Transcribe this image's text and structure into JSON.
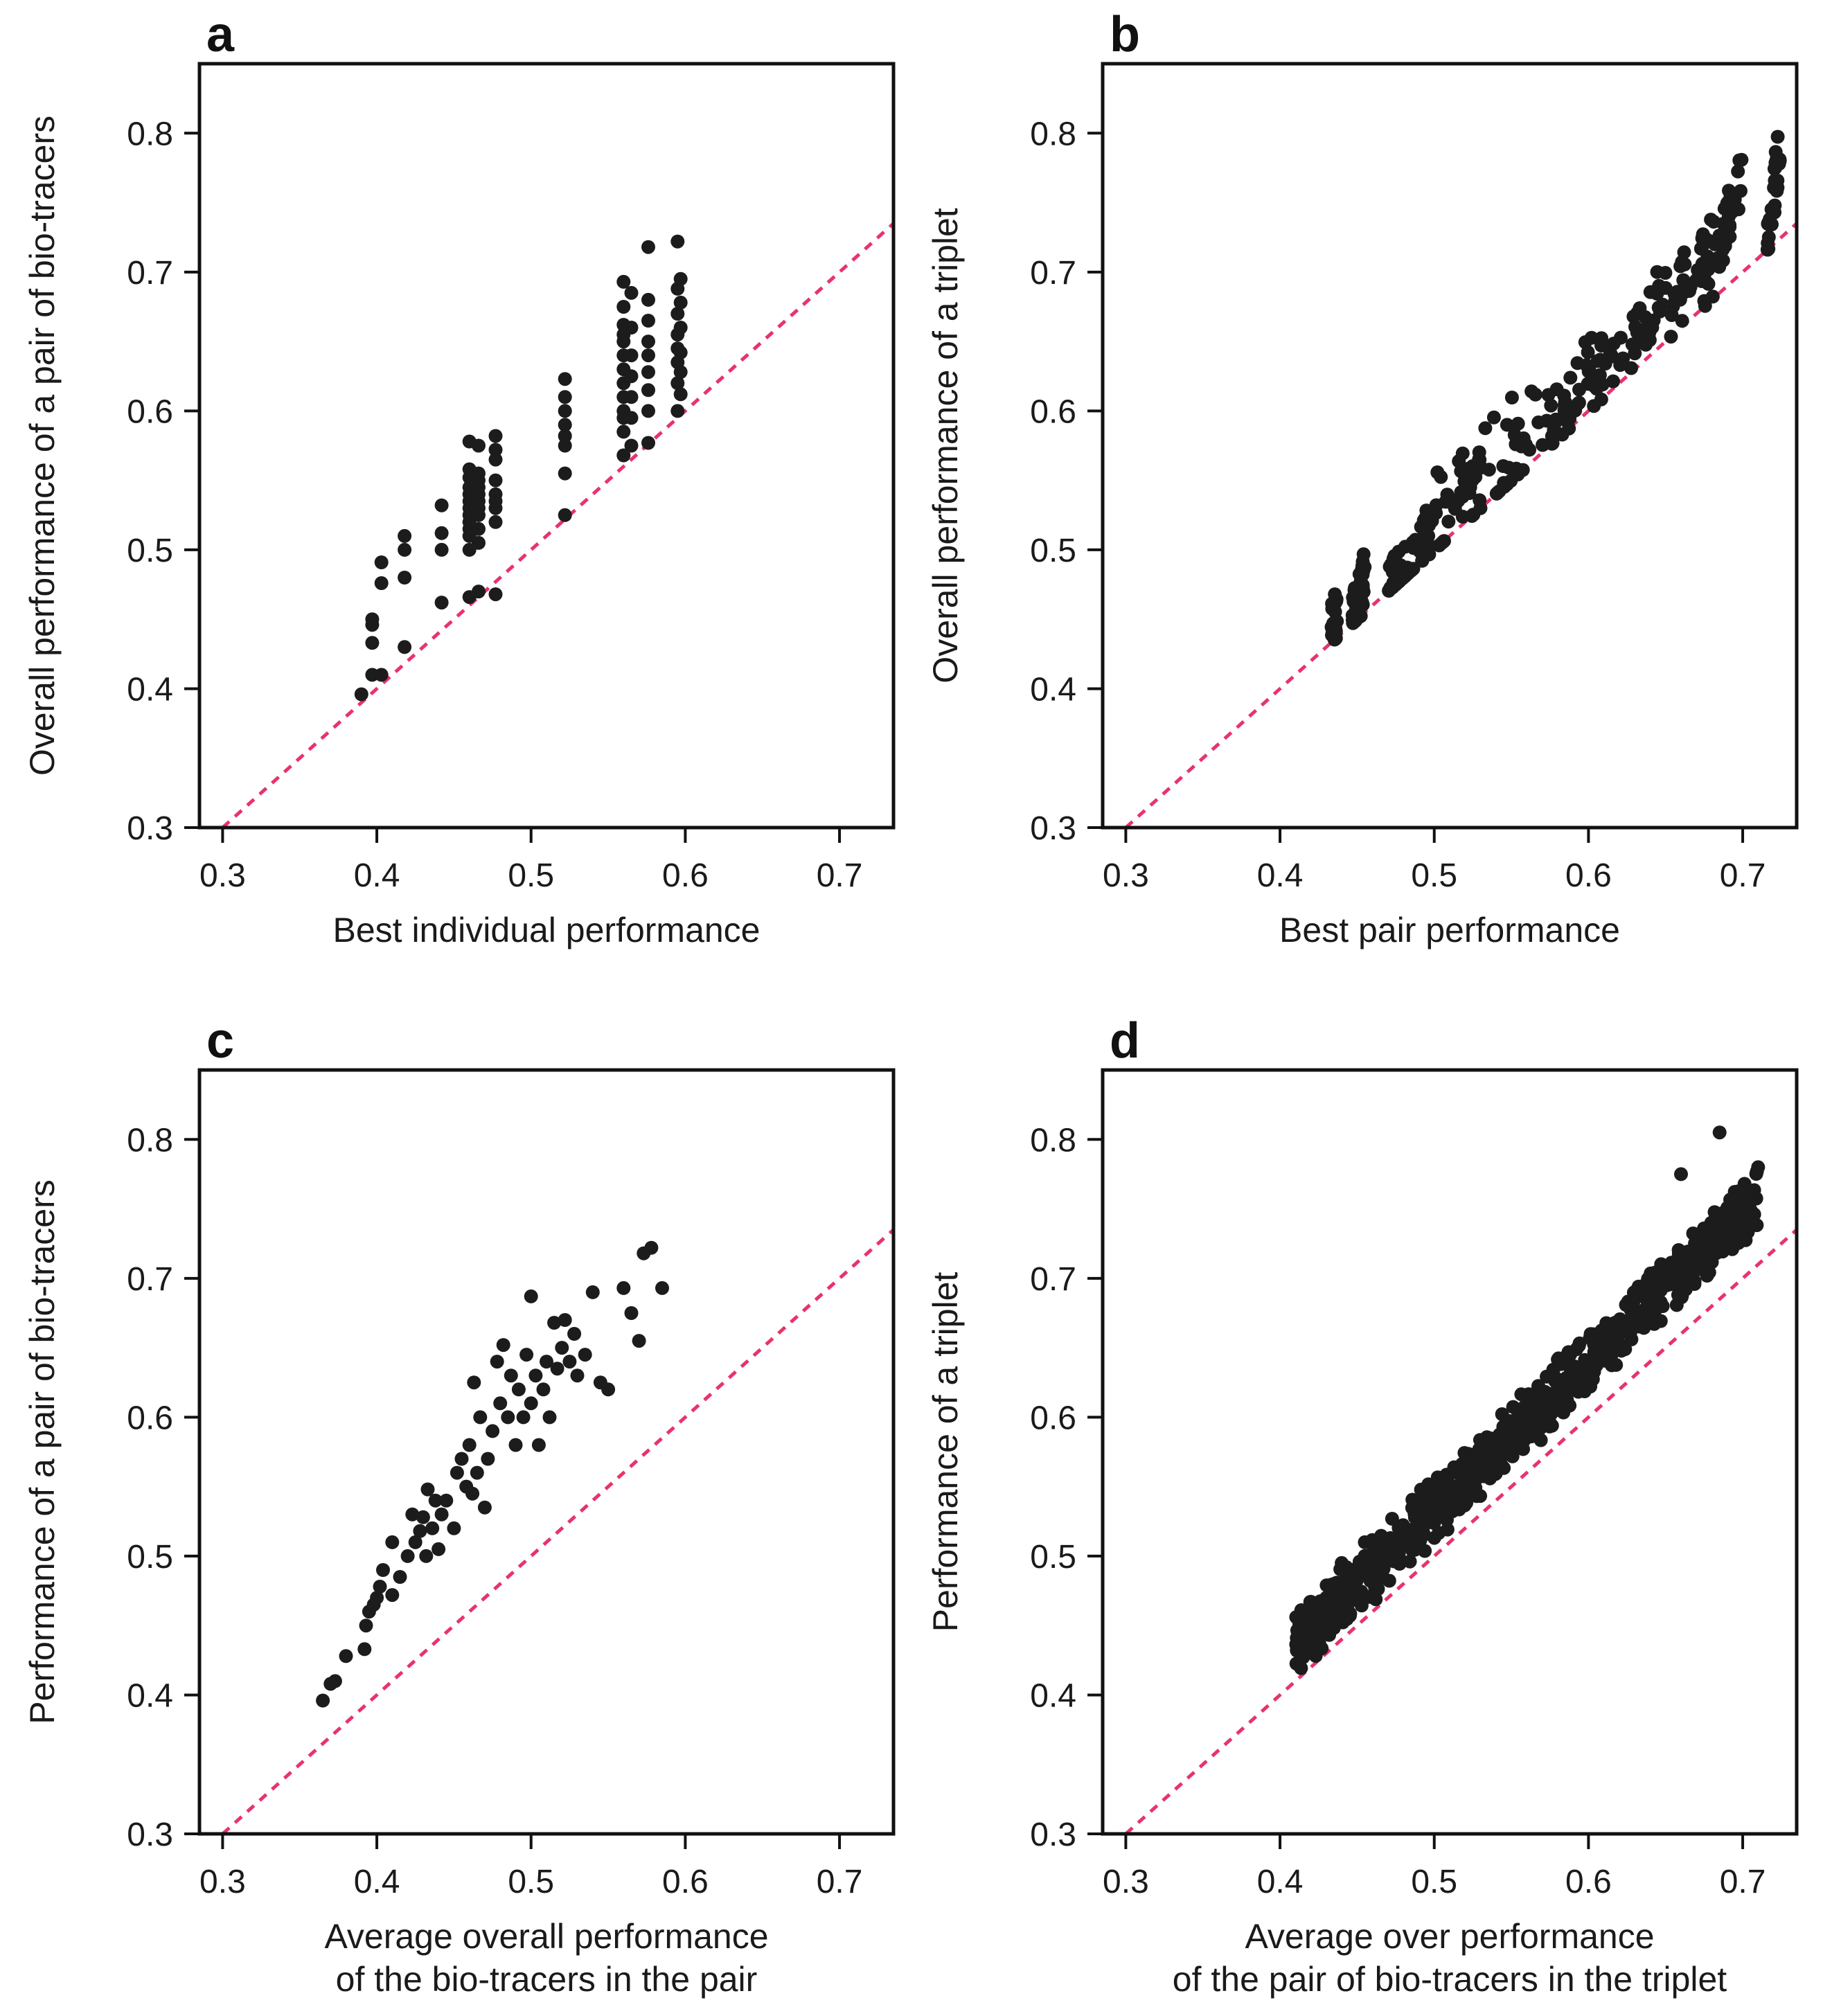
{
  "colors": {
    "points": "#1c1c1c",
    "reference_line": "#e8336b",
    "axes": "#111111"
  },
  "chart_data": [
    {
      "type": "scatter",
      "panel": "a",
      "title": "",
      "xlabel": [
        "Best individual performance"
      ],
      "ylabel": "Overall performance of a pair of bio-tracers",
      "xlim": [
        0.285,
        0.735
      ],
      "ylim": [
        0.3,
        0.85
      ],
      "xticks": [
        0.3,
        0.4,
        0.5,
        0.6,
        0.7
      ],
      "xtick_labels": [
        "0.3",
        "0.4",
        "0.5",
        "0.6",
        "0.7"
      ],
      "yticks": [
        0.3,
        0.4,
        0.5,
        0.6,
        0.7,
        0.8
      ],
      "ytick_labels": [
        "0.3",
        "0.4",
        "0.5",
        "0.6",
        "0.7",
        "0.8"
      ],
      "reference_line": "y = x",
      "columns": [
        {
          "x": 0.39,
          "y": [
            0.396
          ]
        },
        {
          "x": 0.397,
          "y": [
            0.41,
            0.433,
            0.446,
            0.45
          ]
        },
        {
          "x": 0.403,
          "y": [
            0.41,
            0.476,
            0.491
          ]
        },
        {
          "x": 0.418,
          "y": [
            0.43,
            0.48,
            0.5,
            0.51
          ]
        },
        {
          "x": 0.442,
          "y": [
            0.462,
            0.5,
            0.512,
            0.532
          ]
        },
        {
          "x": 0.46,
          "y": [
            0.466,
            0.5,
            0.51,
            0.515,
            0.52,
            0.525,
            0.53,
            0.535,
            0.54,
            0.545,
            0.552,
            0.558,
            0.578
          ]
        },
        {
          "x": 0.466,
          "y": [
            0.47,
            0.505,
            0.515,
            0.525,
            0.53,
            0.535,
            0.54,
            0.545,
            0.55,
            0.555,
            0.575
          ]
        },
        {
          "x": 0.477,
          "y": [
            0.468,
            0.52,
            0.53,
            0.535,
            0.54,
            0.55,
            0.565,
            0.572,
            0.582
          ]
        },
        {
          "x": 0.522,
          "y": [
            0.525,
            0.555,
            0.575,
            0.582,
            0.59,
            0.6,
            0.61,
            0.623
          ]
        },
        {
          "x": 0.56,
          "y": [
            0.568,
            0.585,
            0.595,
            0.6,
            0.61,
            0.62,
            0.63,
            0.64,
            0.65,
            0.655,
            0.662,
            0.675,
            0.693
          ]
        },
        {
          "x": 0.565,
          "y": [
            0.575,
            0.595,
            0.61,
            0.625,
            0.64,
            0.66,
            0.685
          ]
        },
        {
          "x": 0.576,
          "y": [
            0.577,
            0.6,
            0.615,
            0.628,
            0.64,
            0.65,
            0.665,
            0.68,
            0.718
          ]
        },
        {
          "x": 0.595,
          "y": [
            0.6,
            0.62,
            0.635,
            0.645,
            0.655,
            0.67,
            0.688,
            0.722
          ]
        },
        {
          "x": 0.597,
          "y": [
            0.612,
            0.628,
            0.642,
            0.66,
            0.678,
            0.695
          ]
        }
      ]
    },
    {
      "type": "scatter",
      "panel": "b",
      "title": "",
      "xlabel": [
        "Best pair performance"
      ],
      "ylabel": "Overall performance of a triplet",
      "xlim": [
        0.285,
        0.735
      ],
      "ylim": [
        0.3,
        0.85
      ],
      "xticks": [
        0.3,
        0.4,
        0.5,
        0.6,
        0.7
      ],
      "xtick_labels": [
        "0.3",
        "0.4",
        "0.5",
        "0.6",
        "0.7"
      ],
      "yticks": [
        0.3,
        0.4,
        0.5,
        0.6,
        0.7,
        0.8
      ],
      "ytick_labels": [
        "0.3",
        "0.4",
        "0.5",
        "0.6",
        "0.7",
        "0.8"
      ],
      "reference_line": "y = x",
      "clusters": [
        {
          "x": [
            0.433,
            0.437
          ],
          "y": [
            0.445,
            0.45
          ]
        },
        {
          "x": [
            0.447,
            0.45
          ],
          "y": [
            0.447,
            0.462
          ]
        },
        {
          "x": [
            0.451,
            0.455
          ],
          "y": [
            0.465,
            0.48
          ]
        },
        {
          "x": [
            0.47,
            0.482
          ],
          "y": [
            0.471,
            0.486
          ]
        },
        {
          "x": [
            0.482,
            0.5
          ],
          "y": [
            0.48,
            0.52
          ]
        },
        {
          "x": [
            0.495,
            0.53
          ],
          "y": [
            0.495,
            0.56
          ]
        },
        {
          "x": [
            0.5,
            0.58
          ],
          "y": [
            0.54,
            0.62
          ]
        },
        {
          "x": [
            0.52,
            0.59
          ],
          "y": [
            0.51,
            0.6
          ]
        },
        {
          "x": [
            0.57,
            0.61
          ],
          "y": [
            0.58,
            0.655
          ]
        },
        {
          "x": [
            0.6,
            0.65
          ],
          "y": [
            0.6,
            0.69
          ]
        },
        {
          "x": [
            0.62,
            0.68
          ],
          "y": [
            0.64,
            0.72
          ]
        },
        {
          "x": [
            0.65,
            0.695
          ],
          "y": [
            0.66,
            0.75
          ]
        },
        {
          "x": [
            0.675,
            0.7
          ],
          "y": [
            0.68,
            0.775
          ]
        },
        {
          "x": [
            0.716,
            0.725
          ],
          "y": [
            0.715,
            0.805
          ]
        }
      ]
    },
    {
      "type": "scatter",
      "panel": "c",
      "title": "",
      "xlabel": [
        "Average overall performance",
        "of the bio-tracers in the pair"
      ],
      "ylabel": "Performance of a pair of bio-tracers",
      "xlim": [
        0.285,
        0.735
      ],
      "ylim": [
        0.3,
        0.85
      ],
      "xticks": [
        0.3,
        0.4,
        0.5,
        0.6,
        0.7
      ],
      "xtick_labels": [
        "0.3",
        "0.4",
        "0.5",
        "0.6",
        "0.7"
      ],
      "yticks": [
        0.3,
        0.4,
        0.5,
        0.6,
        0.7,
        0.8
      ],
      "ytick_labels": [
        "0.3",
        "0.4",
        "0.5",
        "0.6",
        "0.7",
        "0.8"
      ],
      "reference_line": "y = x",
      "points": [
        [
          0.365,
          0.396
        ],
        [
          0.37,
          0.408
        ],
        [
          0.373,
          0.41
        ],
        [
          0.38,
          0.428
        ],
        [
          0.392,
          0.433
        ],
        [
          0.393,
          0.45
        ],
        [
          0.395,
          0.46
        ],
        [
          0.398,
          0.465
        ],
        [
          0.4,
          0.47
        ],
        [
          0.402,
          0.478
        ],
        [
          0.404,
          0.49
        ],
        [
          0.41,
          0.472
        ],
        [
          0.41,
          0.51
        ],
        [
          0.415,
          0.485
        ],
        [
          0.42,
          0.5
        ],
        [
          0.423,
          0.53
        ],
        [
          0.425,
          0.51
        ],
        [
          0.428,
          0.518
        ],
        [
          0.43,
          0.528
        ],
        [
          0.432,
          0.5
        ],
        [
          0.433,
          0.548
        ],
        [
          0.436,
          0.52
        ],
        [
          0.438,
          0.54
        ],
        [
          0.44,
          0.505
        ],
        [
          0.442,
          0.53
        ],
        [
          0.445,
          0.54
        ],
        [
          0.45,
          0.52
        ],
        [
          0.452,
          0.56
        ],
        [
          0.455,
          0.57
        ],
        [
          0.458,
          0.55
        ],
        [
          0.46,
          0.58
        ],
        [
          0.462,
          0.545
        ],
        [
          0.463,
          0.625
        ],
        [
          0.465,
          0.56
        ],
        [
          0.467,
          0.6
        ],
        [
          0.47,
          0.535
        ],
        [
          0.472,
          0.57
        ],
        [
          0.475,
          0.59
        ],
        [
          0.478,
          0.64
        ],
        [
          0.48,
          0.61
        ],
        [
          0.482,
          0.652
        ],
        [
          0.485,
          0.6
        ],
        [
          0.487,
          0.63
        ],
        [
          0.49,
          0.58
        ],
        [
          0.492,
          0.62
        ],
        [
          0.495,
          0.6
        ],
        [
          0.497,
          0.645
        ],
        [
          0.5,
          0.687
        ],
        [
          0.5,
          0.61
        ],
        [
          0.503,
          0.63
        ],
        [
          0.505,
          0.58
        ],
        [
          0.508,
          0.62
        ],
        [
          0.51,
          0.64
        ],
        [
          0.512,
          0.6
        ],
        [
          0.515,
          0.668
        ],
        [
          0.517,
          0.635
        ],
        [
          0.52,
          0.65
        ],
        [
          0.522,
          0.67
        ],
        [
          0.525,
          0.64
        ],
        [
          0.528,
          0.66
        ],
        [
          0.53,
          0.63
        ],
        [
          0.535,
          0.645
        ],
        [
          0.54,
          0.69
        ],
        [
          0.545,
          0.625
        ],
        [
          0.55,
          0.62
        ],
        [
          0.56,
          0.693
        ],
        [
          0.565,
          0.675
        ],
        [
          0.57,
          0.655
        ],
        [
          0.573,
          0.718
        ],
        [
          0.578,
          0.722
        ],
        [
          0.585,
          0.693
        ]
      ]
    },
    {
      "type": "scatter",
      "panel": "d",
      "title": "",
      "xlabel": [
        "Average over performance",
        "of the pair of bio-tracers in the triplet"
      ],
      "ylabel": "Performance of a triplet",
      "xlim": [
        0.285,
        0.735
      ],
      "ylim": [
        0.3,
        0.85
      ],
      "xticks": [
        0.3,
        0.4,
        0.5,
        0.6,
        0.7
      ],
      "xtick_labels": [
        "0.3",
        "0.4",
        "0.5",
        "0.6",
        "0.7"
      ],
      "yticks": [
        0.3,
        0.4,
        0.5,
        0.6,
        0.7,
        0.8
      ],
      "ytick_labels": [
        "0.3",
        "0.4",
        "0.5",
        "0.6",
        "0.7",
        "0.8"
      ],
      "reference_line": "y = x",
      "band": {
        "x_range": [
          0.41,
          0.71
        ],
        "intercept": 0.0,
        "slope_note": "y ≈ 1.065x + 0.0",
        "spread": 0.025
      },
      "extra_points": [
        [
          0.413,
          0.445
        ],
        [
          0.418,
          0.447
        ],
        [
          0.425,
          0.465
        ],
        [
          0.43,
          0.47
        ],
        [
          0.435,
          0.48
        ],
        [
          0.44,
          0.495
        ],
        [
          0.455,
          0.51
        ],
        [
          0.66,
          0.775
        ],
        [
          0.685,
          0.805
        ],
        [
          0.695,
          0.75
        ],
        [
          0.71,
          0.78
        ]
      ]
    }
  ]
}
